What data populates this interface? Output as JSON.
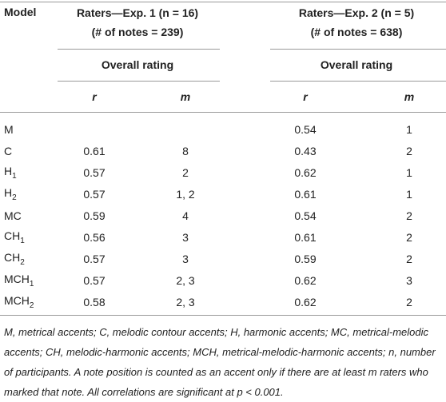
{
  "table": {
    "header": {
      "model": "Model",
      "groups": [
        {
          "title": "Raters—Exp. 1 (n = 16)",
          "notes": "(# of notes = 239)",
          "sub": "Overall rating"
        },
        {
          "title": "Raters—Exp. 2 (n = 5)",
          "notes": "(# of notes = 638)",
          "sub": "Overall rating"
        }
      ],
      "columns": [
        "r",
        "m",
        "r",
        "m"
      ]
    },
    "rows": [
      {
        "model": "M",
        "sub": null,
        "cells": [
          null,
          null,
          "0.54",
          "1"
        ]
      },
      {
        "model": "C",
        "sub": null,
        "cells": [
          "0.61",
          "8",
          "0.43",
          "2"
        ]
      },
      {
        "model": "H",
        "sub": "1",
        "cells": [
          "0.57",
          "2",
          "0.62",
          "1"
        ]
      },
      {
        "model": "H",
        "sub": "2",
        "cells": [
          "0.57",
          "1, 2",
          "0.61",
          "1"
        ]
      },
      {
        "model": "MC",
        "sub": null,
        "cells": [
          "0.59",
          "4",
          "0.54",
          "2"
        ]
      },
      {
        "model": "CH",
        "sub": "1",
        "cells": [
          "0.56",
          "3",
          "0.61",
          "2"
        ]
      },
      {
        "model": "CH",
        "sub": "2",
        "cells": [
          "0.57",
          "3",
          "0.59",
          "2"
        ]
      },
      {
        "model": "MCH",
        "sub": "1",
        "cells": [
          "0.57",
          "2, 3",
          "0.62",
          "3"
        ]
      },
      {
        "model": "MCH",
        "sub": "2",
        "cells": [
          "0.58",
          "2, 3",
          "0.62",
          "2"
        ]
      }
    ],
    "footnote": "M, metrical accents; C, melodic contour accents; H, harmonic accents; MC, metrical-melodic accents; CH, melodic-harmonic accents; MCH, metrical-melodic-harmonic accents; n, number of participants. A note position is counted as an accent only if there are at least m raters who marked that note. All correlations are significant at p < 0.001."
  }
}
